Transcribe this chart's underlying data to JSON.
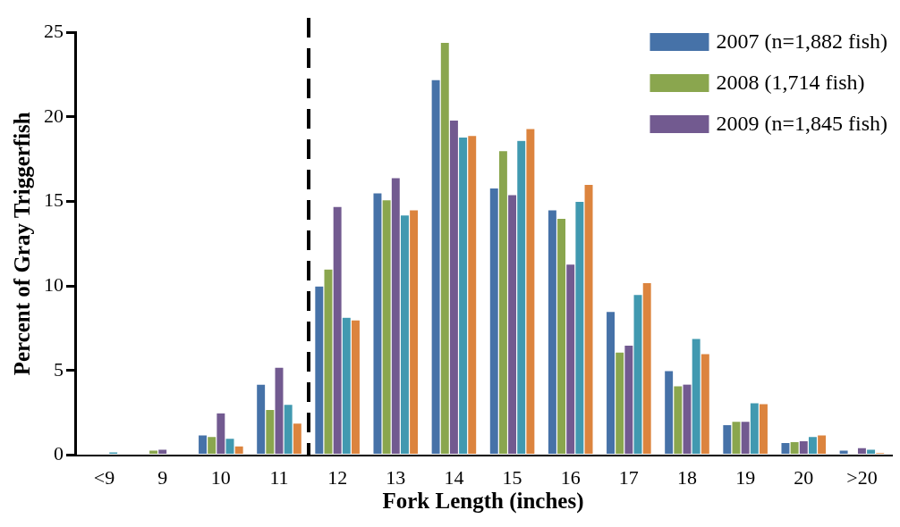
{
  "chart_data": {
    "type": "bar",
    "xlabel": "Fork Length (inches)",
    "ylabel": "Percent of Gray Triggerfish",
    "categories": [
      "<9",
      "9",
      "10",
      "11",
      "12",
      "13",
      "14",
      "15",
      "16",
      "17",
      "18",
      "19",
      "20",
      ">20"
    ],
    "series": [
      {
        "name": "2007 (n=1,882 fish)",
        "color": "#4672a8",
        "values": [
          0,
          0,
          1.2,
          4.2,
          10.0,
          15.5,
          22.2,
          15.8,
          14.5,
          8.5,
          5.0,
          1.8,
          0.75,
          0.3
        ]
      },
      {
        "name": "2008 (1,714 fish)",
        "color": "#8aa64e",
        "values": [
          0,
          0.3,
          1.1,
          2.7,
          11.0,
          15.1,
          24.4,
          18.0,
          14.0,
          6.1,
          4.1,
          2.0,
          0.8,
          0
        ]
      },
      {
        "name": "2009 (n=1,845 fish)",
        "color": "#725a90",
        "values": [
          0,
          0.35,
          2.5,
          5.2,
          14.7,
          16.4,
          19.8,
          15.4,
          11.3,
          6.5,
          4.2,
          2.0,
          0.85,
          0.45
        ]
      },
      {
        "color": "#4199b0",
        "values": [
          0.2,
          0,
          1.0,
          3.0,
          8.15,
          14.2,
          18.8,
          18.6,
          15.0,
          9.5,
          6.9,
          3.1,
          1.1,
          0.35
        ]
      },
      {
        "color": "#dc843e",
        "values": [
          0,
          0,
          0.55,
          1.9,
          8.0,
          14.5,
          18.9,
          19.3,
          16.0,
          10.2,
          6.0,
          3.05,
          1.2,
          0.15
        ]
      }
    ],
    "ylim": [
      0,
      25
    ],
    "yticks": [
      0,
      5,
      10,
      15,
      20,
      25
    ],
    "grid": false,
    "legend": "top right"
  }
}
